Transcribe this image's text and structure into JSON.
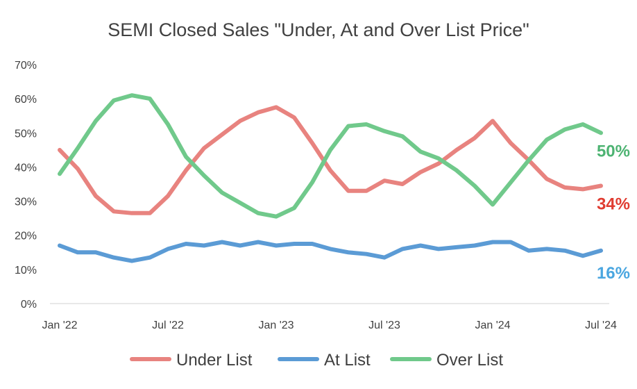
{
  "chart_data": {
    "type": "line",
    "title": "SEMI Closed Sales \"Under, At and Over List Price\"",
    "xlabel": "",
    "ylabel": "",
    "ylim": [
      0,
      70
    ],
    "y_tick_labels": [
      "0%",
      "10%",
      "20%",
      "30%",
      "40%",
      "50%",
      "60%",
      "70%"
    ],
    "x_tick_labels": [
      "Jan '22",
      "Jul '22",
      "Jan '23",
      "Jul '23",
      "Jan '24",
      "Jul '24"
    ],
    "x": [
      "Jan '22",
      "Feb '22",
      "Mar '22",
      "Apr '22",
      "May '22",
      "Jun '22",
      "Jul '22",
      "Aug '22",
      "Sep '22",
      "Oct '22",
      "Nov '22",
      "Dec '22",
      "Jan '23",
      "Feb '23",
      "Mar '23",
      "Apr '23",
      "May '23",
      "Jun '23",
      "Jul '23",
      "Aug '23",
      "Sep '23",
      "Oct '23",
      "Nov '23",
      "Dec '23",
      "Jan '24",
      "Feb '24",
      "Mar '24",
      "Apr '24",
      "May '24",
      "Jun '24",
      "Jul '24"
    ],
    "grid": false,
    "legend": "bottom",
    "series": [
      {
        "name": "Under List",
        "color": "#e8837f",
        "values": [
          45,
          39.5,
          31.5,
          27,
          26.5,
          26.5,
          31.5,
          39,
          45.5,
          49.5,
          53.5,
          56,
          57.5,
          54.5,
          47,
          39,
          33,
          33,
          36,
          35,
          38.5,
          41,
          45,
          48.5,
          53.5,
          47,
          42,
          36.5,
          34,
          33.5,
          34.5
        ]
      },
      {
        "name": "At List",
        "color": "#5b9bd5",
        "values": [
          17,
          15,
          15,
          13.5,
          12.5,
          13.5,
          16,
          17.5,
          17,
          18,
          17,
          18,
          17,
          17.5,
          17.5,
          16,
          15,
          14.5,
          13.5,
          16,
          17,
          16,
          16.5,
          17,
          18,
          18,
          15.5,
          16,
          15.5,
          14,
          15.5
        ]
      },
      {
        "name": "Over List",
        "color": "#70c98b",
        "values": [
          38,
          45.5,
          53.5,
          59.5,
          61,
          60,
          52.5,
          43,
          37.5,
          32.5,
          29.5,
          26.5,
          25.5,
          28,
          35.5,
          45,
          52,
          52.5,
          50.5,
          49,
          44.5,
          42.5,
          39,
          34.5,
          29,
          35.5,
          42,
          48,
          51,
          52.5,
          50
        ]
      }
    ],
    "end_labels": [
      {
        "series": "Over List",
        "text": "50%",
        "color": "#4db372"
      },
      {
        "series": "Under List",
        "text": "34%",
        "color": "#e03c31"
      },
      {
        "series": "At List",
        "text": "16%",
        "color": "#4aa6e0"
      }
    ]
  }
}
